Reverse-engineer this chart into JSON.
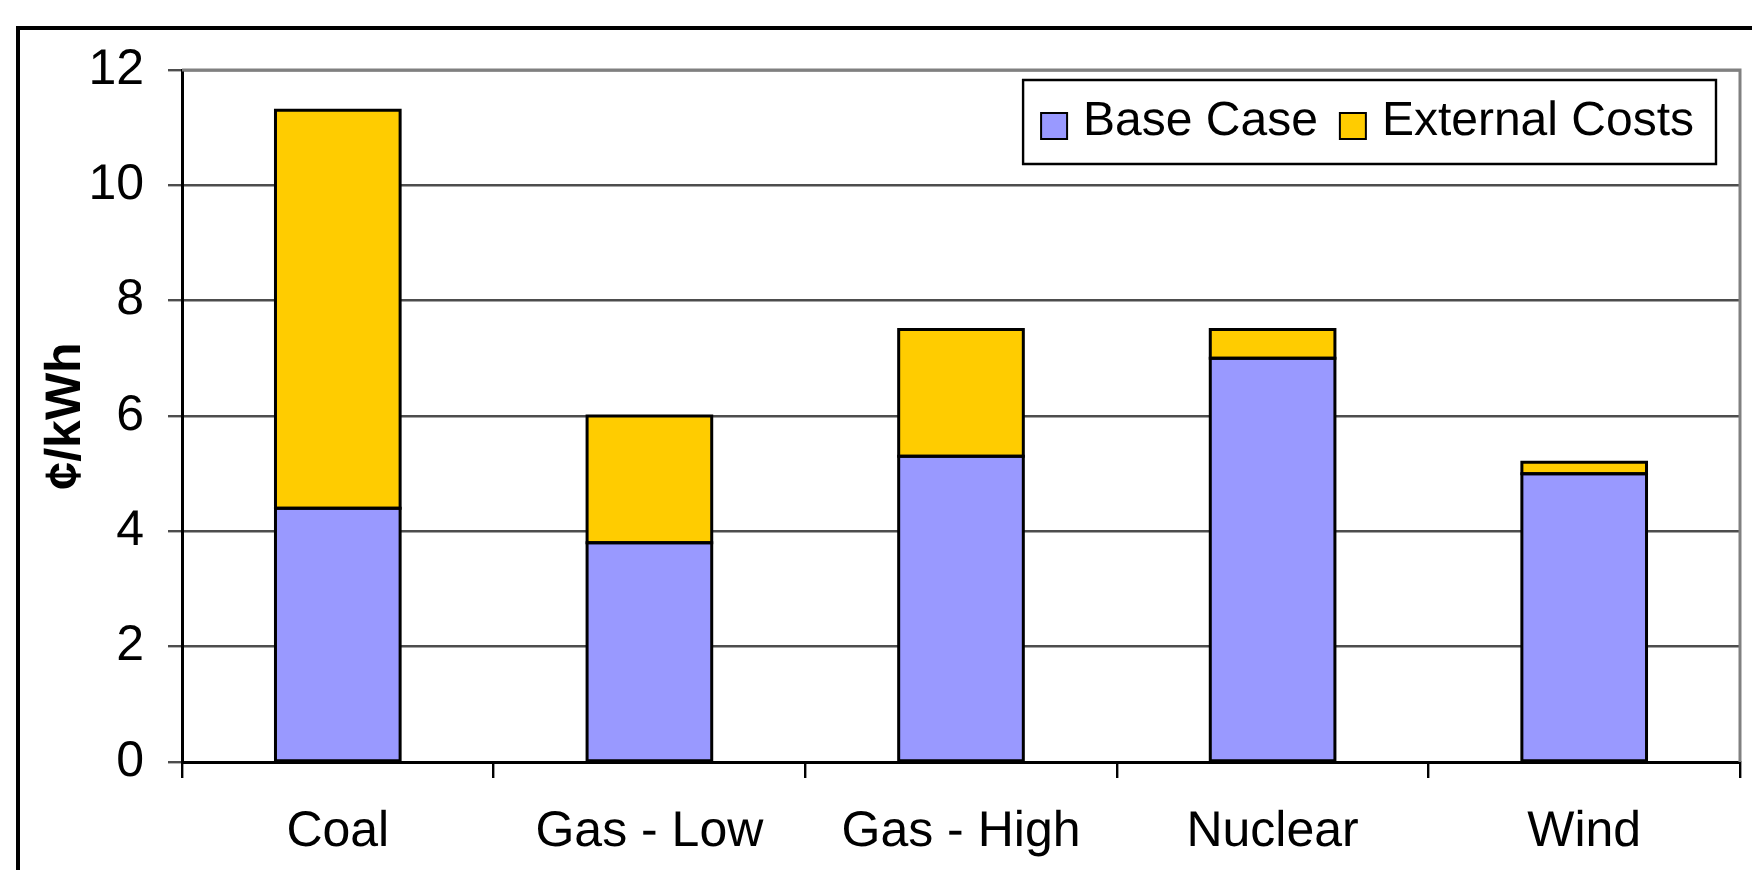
{
  "chart_data": {
    "type": "bar",
    "categories": [
      "Coal",
      "Gas - Low",
      "Gas - High",
      "Nuclear",
      "Wind"
    ],
    "series": [
      {
        "name": "Base Case",
        "color": "#9999ff",
        "values": [
          4.4,
          3.8,
          5.3,
          7.0,
          5.0
        ]
      },
      {
        "name": "External Costs",
        "color": "#ffcc00",
        "values": [
          6.9,
          2.2,
          2.2,
          0.5,
          0.2
        ]
      }
    ],
    "stacked": true,
    "ylabel": "¢/kWh",
    "ylim": [
      0,
      12
    ],
    "yticks": [
      0,
      2,
      4,
      6,
      8,
      10,
      12
    ],
    "grid": "y",
    "legend": "top right"
  }
}
